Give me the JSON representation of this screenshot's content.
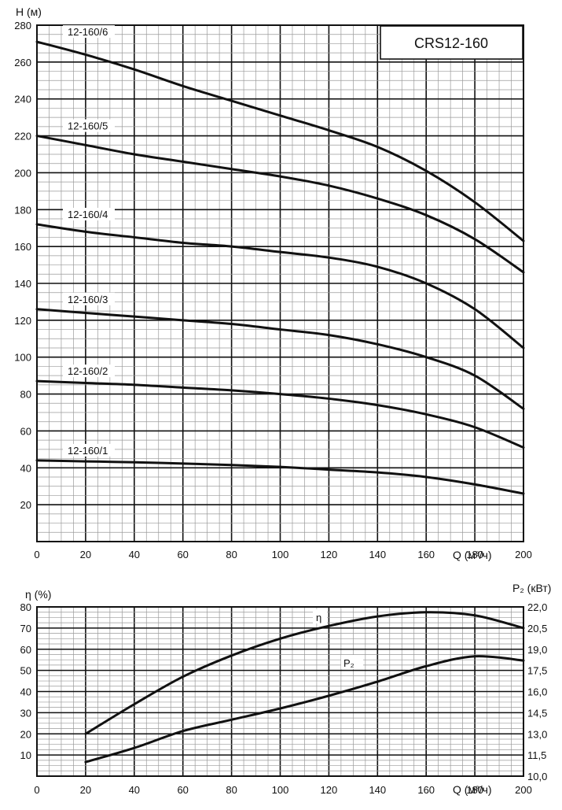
{
  "chart_data": [
    {
      "type": "line",
      "title": "CRS12-160",
      "xlabel": "Q (м³/ч)",
      "ylabel": "H (м)",
      "xlim": [
        0,
        200
      ],
      "ylim": [
        0,
        280
      ],
      "x_ticks": [
        "0",
        "20",
        "40",
        "60",
        "80",
        "100",
        "120",
        "140",
        "160",
        "180",
        "200"
      ],
      "y_ticks": [
        "20",
        "40",
        "60",
        "80",
        "100",
        "120",
        "140",
        "160",
        "180",
        "200",
        "220",
        "240",
        "260",
        "280"
      ],
      "grid": true,
      "series": [
        {
          "name": "12-160/6",
          "x": [
            0,
            20,
            40,
            60,
            80,
            100,
            120,
            140,
            160,
            180,
            200
          ],
          "y": [
            271,
            264,
            256,
            247,
            239,
            231,
            223,
            214,
            201,
            184,
            163
          ]
        },
        {
          "name": "12-160/5",
          "x": [
            0,
            20,
            40,
            60,
            80,
            100,
            120,
            140,
            160,
            180,
            200
          ],
          "y": [
            220,
            215,
            210,
            206,
            202,
            198,
            193,
            186,
            177,
            164,
            146
          ]
        },
        {
          "name": "12-160/4",
          "x": [
            0,
            20,
            40,
            60,
            80,
            100,
            120,
            140,
            160,
            180,
            200
          ],
          "y": [
            172,
            168,
            165,
            162,
            160,
            157,
            154,
            149,
            140,
            126,
            105
          ]
        },
        {
          "name": "12-160/3",
          "x": [
            0,
            20,
            40,
            60,
            80,
            100,
            120,
            140,
            160,
            180,
            200
          ],
          "y": [
            126,
            124,
            122,
            120,
            118,
            115,
            112,
            107,
            100,
            90,
            72
          ]
        },
        {
          "name": "12-160/2",
          "x": [
            0,
            20,
            40,
            60,
            80,
            100,
            120,
            140,
            160,
            180,
            200
          ],
          "y": [
            87,
            86,
            85,
            83.5,
            82,
            80,
            77.5,
            74,
            69,
            62,
            51
          ]
        },
        {
          "name": "12-160/1",
          "x": [
            0,
            20,
            40,
            60,
            80,
            100,
            120,
            140,
            160,
            180,
            200
          ],
          "y": [
            44,
            43.5,
            43,
            42.3,
            41.5,
            40.5,
            39,
            37.5,
            35,
            31,
            26
          ]
        }
      ]
    },
    {
      "type": "line",
      "xlabel": "Q (м³/ч)",
      "ylabel": "η (%)",
      "ylabel_right": "P₂ (кВт)",
      "xlim": [
        0,
        200
      ],
      "ylim": [
        0,
        80
      ],
      "ylim_right": [
        10.0,
        22.0
      ],
      "x_ticks": [
        "0",
        "20",
        "40",
        "60",
        "80",
        "100",
        "120",
        "140",
        "160",
        "180",
        "200"
      ],
      "y_ticks": [
        "10",
        "20",
        "30",
        "40",
        "50",
        "60",
        "70",
        "80"
      ],
      "y_ticks_right": [
        "10,0",
        "11,5",
        "13,0",
        "14,5",
        "16,0",
        "17,5",
        "19,0",
        "20,5",
        "22,0"
      ],
      "grid": true,
      "series": [
        {
          "name": "η",
          "axis": "left",
          "x": [
            20,
            40,
            60,
            80,
            100,
            120,
            140,
            160,
            180,
            200
          ],
          "y": [
            20,
            34,
            47,
            57,
            65,
            71,
            75.5,
            77.5,
            76,
            70
          ]
        },
        {
          "name": "P₂",
          "axis": "right",
          "x": [
            20,
            40,
            60,
            80,
            100,
            120,
            140,
            160,
            180,
            200
          ],
          "y": [
            11.0,
            12.0,
            13.2,
            14.0,
            14.8,
            15.7,
            16.7,
            17.8,
            18.5,
            18.2
          ]
        }
      ]
    }
  ]
}
